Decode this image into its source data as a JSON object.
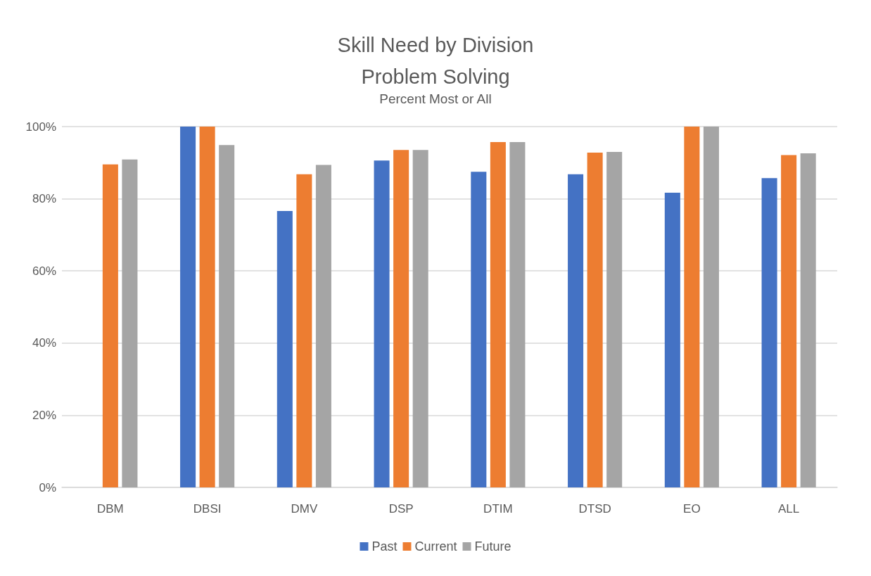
{
  "chart_data": {
    "type": "bar",
    "title": "Skill Need by Division\nProblem Solving",
    "subtitle": "Percent Most or All",
    "categories": [
      "DBM",
      "DBSI",
      "DMV",
      "DSP",
      "DTIM",
      "DTSD",
      "EO",
      "ALL"
    ],
    "series": [
      {
        "name": "Past",
        "color": "#4472c4",
        "values": [
          null,
          100,
          76.6,
          90.6,
          87.5,
          86.8,
          81.7,
          85.7
        ]
      },
      {
        "name": "Current",
        "color": "#ed7d31",
        "values": [
          89.5,
          100,
          86.8,
          93.5,
          95.7,
          92.8,
          100,
          92.1
        ]
      },
      {
        "name": "Future",
        "color": "#a5a5a5",
        "values": [
          90.9,
          94.9,
          89.4,
          93.5,
          95.7,
          93.0,
          100,
          92.6
        ]
      }
    ],
    "ylim": [
      0,
      100
    ],
    "yticks": [
      {
        "value": 0,
        "label": "0%"
      },
      {
        "value": 20,
        "label": "20%"
      },
      {
        "value": 40,
        "label": "40%"
      },
      {
        "value": 60,
        "label": "60%"
      },
      {
        "value": 80,
        "label": "80%"
      },
      {
        "value": 100,
        "label": "100%"
      }
    ],
    "grid": "y",
    "legend": "bottom"
  }
}
